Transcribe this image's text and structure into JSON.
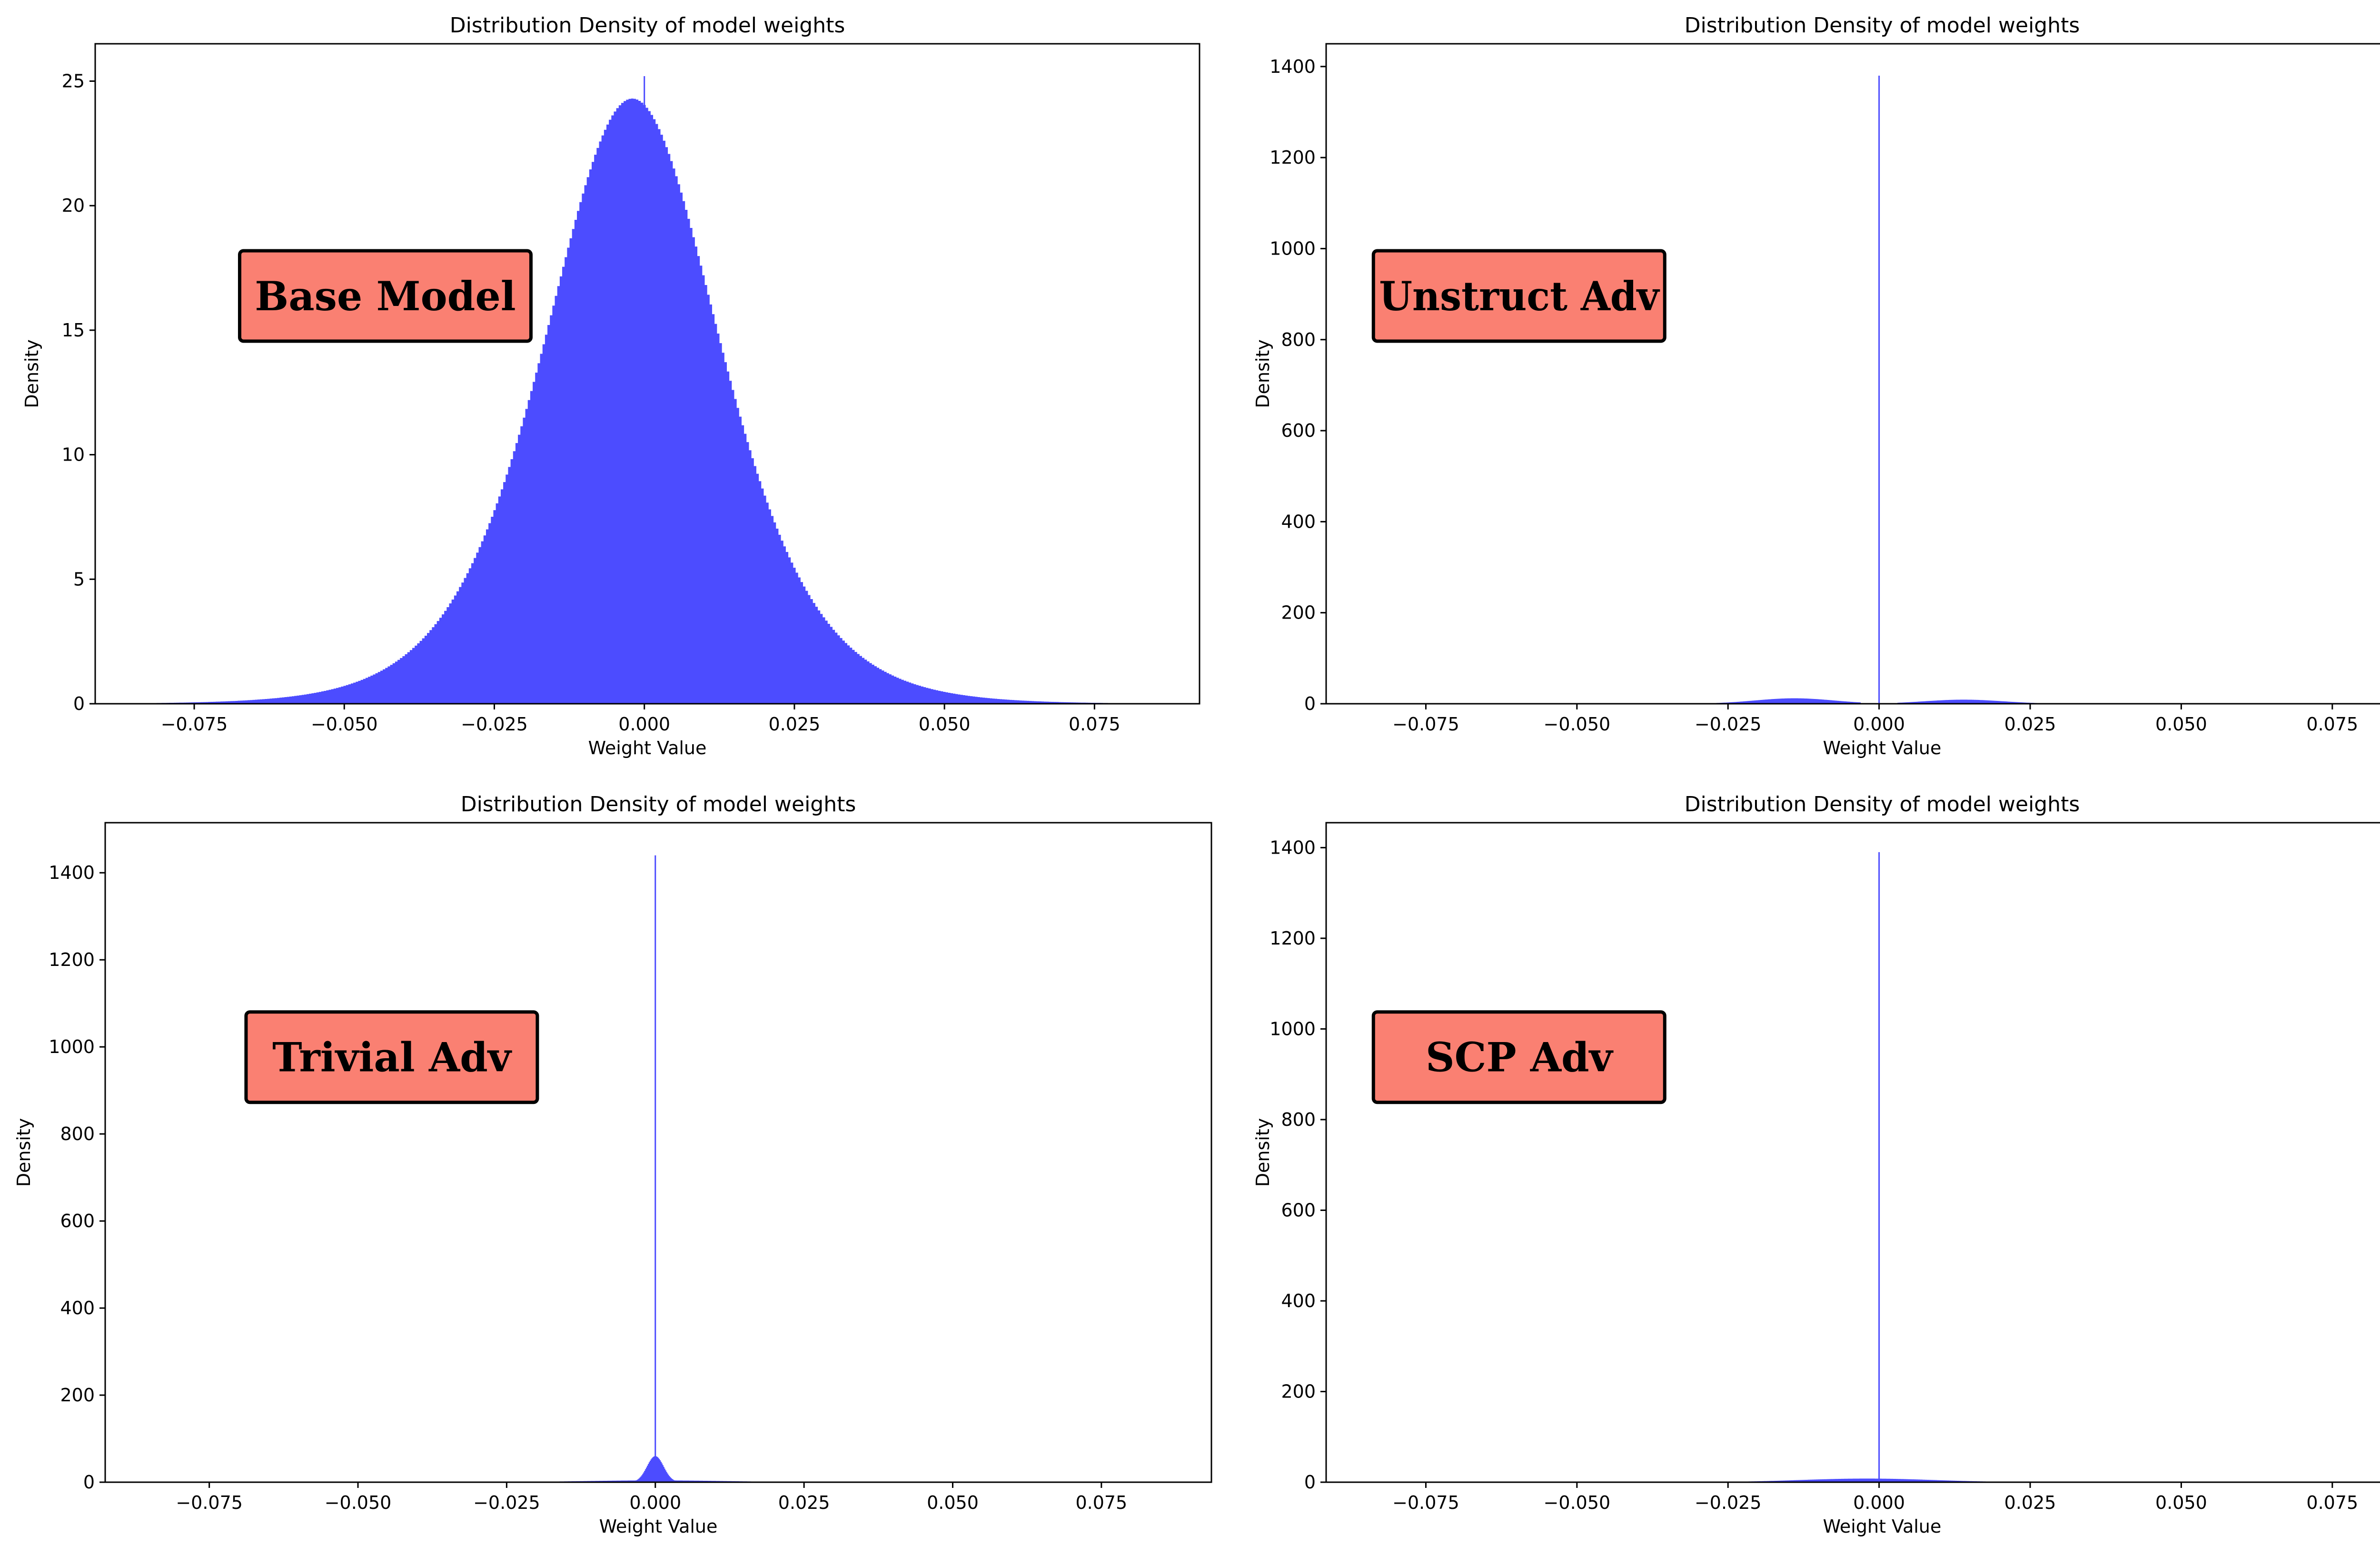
{
  "figure": {
    "background": "#ffffff"
  },
  "chart_data": [
    {
      "type": "histogram",
      "title": "Distribution Density of model weights",
      "xlabel": "Weight Value",
      "ylabel": "Density",
      "badge": {
        "text": "Base Model",
        "color": "#fa8072"
      },
      "bar_color": "#4c4cff",
      "xlim": [
        -0.0915,
        0.0925
      ],
      "ylim": [
        0,
        26.5
      ],
      "xticks": [
        -0.075,
        -0.05,
        -0.025,
        0.0,
        0.025,
        0.05,
        0.075
      ],
      "xtick_labels": [
        "−0.075",
        "−0.050",
        "−0.025",
        "0.000",
        "0.025",
        "0.050",
        "0.075"
      ],
      "yticks": [
        0,
        5,
        10,
        15,
        20,
        25
      ],
      "ytick_labels": [
        "0",
        "5",
        "10",
        "15",
        "20",
        "25"
      ],
      "x_range": [
        -0.087,
        0.085
      ],
      "peak_density": 24.3,
      "spike": {
        "x": 0.0,
        "density": 25.2
      },
      "distribution": "peaked_center",
      "grid": false,
      "legend": "none"
    },
    {
      "type": "histogram",
      "title": "Distribution Density of model weights",
      "xlabel": "Weight Value",
      "ylabel": "Density",
      "badge": {
        "text": "Unstruct Adv",
        "color": "#fa8072"
      },
      "bar_color": "#4c4cff",
      "xlim": [
        -0.0915,
        0.0925
      ],
      "ylim": [
        0,
        1450
      ],
      "xticks": [
        -0.075,
        -0.05,
        -0.025,
        0.0,
        0.025,
        0.05,
        0.075
      ],
      "xtick_labels": [
        "−0.075",
        "−0.050",
        "−0.025",
        "0.000",
        "0.025",
        "0.050",
        "0.075"
      ],
      "yticks": [
        0,
        200,
        400,
        600,
        800,
        1000,
        1200,
        1400
      ],
      "ytick_labels": [
        "0",
        "200",
        "400",
        "600",
        "800",
        "1000",
        "1200",
        "1400"
      ],
      "x_range": [
        -0.04,
        0.035
      ],
      "peak_density": 12,
      "spike": {
        "x": 0.0,
        "density": 1380
      },
      "distribution": "bimodal",
      "grid": false,
      "legend": "none"
    },
    {
      "type": "histogram",
      "title": "Distribution Density of model weights",
      "xlabel": "Weight Value",
      "ylabel": "Density",
      "badge": {
        "text": "Trivial Adv",
        "color": "#fa8072"
      },
      "bar_color": "#4c4cff",
      "xlim": [
        -0.0925,
        0.0935
      ],
      "ylim": [
        0,
        1515
      ],
      "xticks": [
        -0.075,
        -0.05,
        -0.025,
        0.0,
        0.025,
        0.05,
        0.075
      ],
      "xtick_labels": [
        "−0.075",
        "−0.050",
        "−0.025",
        "0.000",
        "0.025",
        "0.050",
        "0.075"
      ],
      "yticks": [
        0,
        200,
        400,
        600,
        800,
        1000,
        1200,
        1400
      ],
      "ytick_labels": [
        "0",
        "200",
        "400",
        "600",
        "800",
        "1000",
        "1200",
        "1400"
      ],
      "x_range": [
        -0.035,
        0.03
      ],
      "peak_density": 60,
      "spike": {
        "x": 0.0,
        "density": 1440
      },
      "distribution": "narrow_center",
      "grid": false,
      "legend": "none"
    },
    {
      "type": "histogram",
      "title": "Distribution Density of model weights",
      "xlabel": "Weight Value",
      "ylabel": "Density",
      "badge": {
        "text": "SCP Adv",
        "color": "#fa8072"
      },
      "bar_color": "#4c4cff",
      "xlim": [
        -0.0915,
        0.0925
      ],
      "ylim": [
        0,
        1455
      ],
      "xticks": [
        -0.075,
        -0.05,
        -0.025,
        0.0,
        0.025,
        0.05,
        0.075
      ],
      "xtick_labels": [
        "−0.075",
        "−0.050",
        "−0.025",
        "0.000",
        "0.025",
        "0.050",
        "0.075"
      ],
      "yticks": [
        0,
        200,
        400,
        600,
        800,
        1000,
        1200,
        1400
      ],
      "ytick_labels": [
        "0",
        "200",
        "400",
        "600",
        "800",
        "1000",
        "1200",
        "1400"
      ],
      "x_range": [
        -0.035,
        0.032
      ],
      "peak_density": 8,
      "spike": {
        "x": 0.0,
        "density": 1390
      },
      "distribution": "broad_low",
      "grid": false,
      "legend": "none"
    }
  ]
}
